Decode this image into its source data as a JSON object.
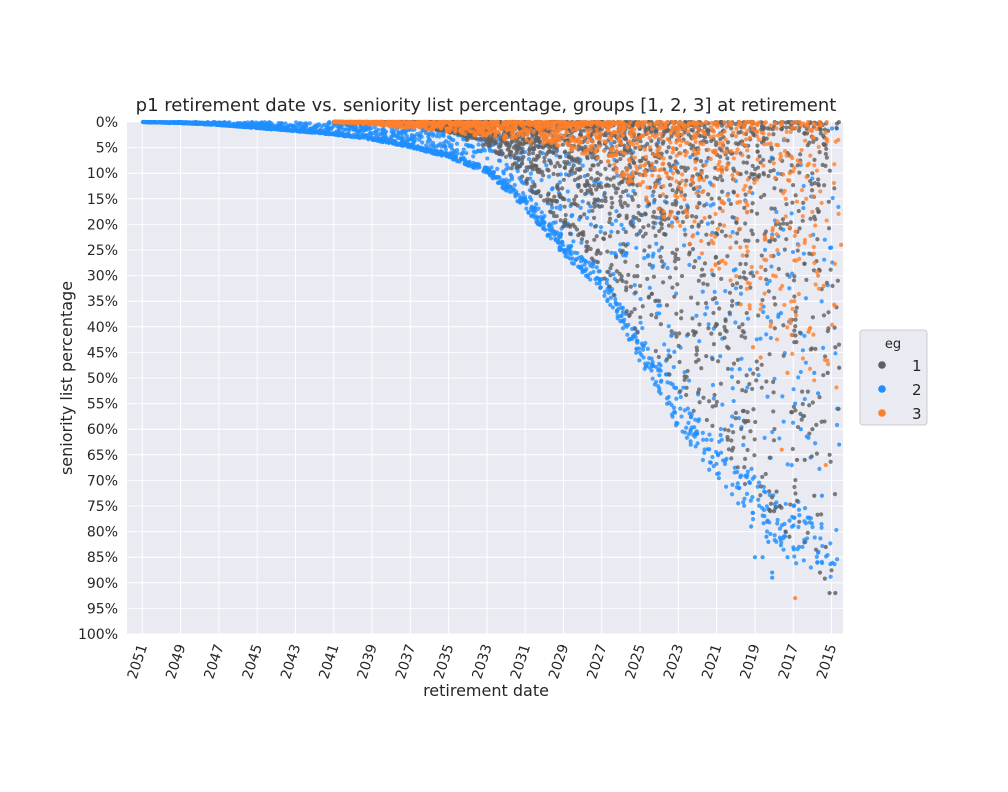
{
  "chart_data": {
    "type": "scatter",
    "title": "p1 retirement date vs. seniority list percentage, groups [1, 2, 3] at retirement",
    "xlabel": "retirement date",
    "ylabel": "seniority list percentage",
    "x_axis_reversed": true,
    "x_ticks": [
      "2051",
      "2049",
      "2047",
      "2045",
      "2043",
      "2041",
      "2039",
      "2037",
      "2035",
      "2033",
      "2031",
      "2029",
      "2027",
      "2025",
      "2023",
      "2021",
      "2019",
      "2017",
      "2015"
    ],
    "xlim": [
      2051.8,
      2014.4
    ],
    "y_axis_reversed": true,
    "ylim": [
      0,
      100
    ],
    "y_ticks": [
      "0%",
      "5%",
      "10%",
      "15%",
      "20%",
      "25%",
      "30%",
      "35%",
      "40%",
      "45%",
      "50%",
      "55%",
      "60%",
      "65%",
      "70%",
      "75%",
      "80%",
      "85%",
      "90%",
      "95%",
      "100%"
    ],
    "grid": true,
    "legend": {
      "title": "eg",
      "placement": "right"
    },
    "series": [
      {
        "name": "1",
        "color": "#5f5f5f",
        "envelope": [
          [
            2041,
            0
          ],
          [
            2037,
            0.5
          ],
          [
            2035,
            2
          ],
          [
            2033,
            5
          ],
          [
            2031,
            12
          ],
          [
            2029,
            21
          ],
          [
            2027,
            30
          ],
          [
            2025,
            42
          ],
          [
            2023,
            53
          ],
          [
            2021,
            62
          ],
          [
            2019,
            75
          ],
          [
            2017,
            82
          ],
          [
            2015,
            93
          ]
        ],
        "points": [
          [
            2014.8,
            92
          ],
          [
            2015.1,
            92
          ],
          [
            2015.6,
            88
          ],
          [
            2017.2,
            81
          ],
          [
            2017.4,
            80
          ],
          [
            2015.9,
            73
          ],
          [
            2016.8,
            74
          ],
          [
            2015.3,
            83
          ],
          [
            2015.1,
            65
          ],
          [
            2016,
            60
          ],
          [
            2016.4,
            66
          ],
          [
            2018.2,
            76
          ],
          [
            2018,
            76
          ],
          [
            2017.7,
            75
          ],
          [
            2016.8,
            66
          ],
          [
            2015.2,
            49
          ],
          [
            2014.6,
            48
          ],
          [
            2014.8,
            44
          ]
        ]
      },
      {
        "name": "2",
        "color": "#1f8fff",
        "envelope": [
          [
            2051,
            0
          ],
          [
            2049,
            0.2
          ],
          [
            2047,
            0.6
          ],
          [
            2045,
            1.2
          ],
          [
            2043,
            1.8
          ],
          [
            2041,
            2.5
          ],
          [
            2039,
            3.5
          ],
          [
            2037,
            5
          ],
          [
            2035,
            7
          ],
          [
            2033,
            10
          ],
          [
            2031,
            17
          ],
          [
            2029,
            26
          ],
          [
            2027,
            33
          ],
          [
            2025,
            47
          ],
          [
            2023,
            60
          ],
          [
            2021,
            70
          ],
          [
            2019,
            78
          ],
          [
            2017,
            86
          ],
          [
            2015,
            90
          ]
        ],
        "points": [
          [
            2017.3,
            85
          ],
          [
            2018.1,
            89
          ],
          [
            2018.1,
            88
          ],
          [
            2018.6,
            85
          ],
          [
            2019,
            85
          ],
          [
            2018.3,
            82
          ],
          [
            2018.4,
            81
          ],
          [
            2019.2,
            79
          ],
          [
            2015.5,
            73
          ],
          [
            2016.6,
            60
          ],
          [
            2016.9,
            55
          ],
          [
            2015.7,
            53
          ],
          [
            2014.6,
            63
          ],
          [
            2014.7,
            56
          ],
          [
            2015.9,
            49
          ]
        ]
      },
      {
        "name": "3",
        "color": "#ff7f2a",
        "envelope": [
          [
            2041,
            0
          ],
          [
            2039,
            0.5
          ],
          [
            2037,
            1.2
          ],
          [
            2035,
            2
          ],
          [
            2033,
            3
          ],
          [
            2031,
            4
          ],
          [
            2029,
            5
          ],
          [
            2027,
            8
          ],
          [
            2025,
            14
          ],
          [
            2023,
            22
          ],
          [
            2021,
            30
          ],
          [
            2019,
            41
          ],
          [
            2017,
            49
          ],
          [
            2015,
            55
          ]
        ],
        "points": [
          [
            2016.9,
            93
          ],
          [
            2015.3,
            67
          ],
          [
            2017.6,
            64
          ],
          [
            2017.3,
            49
          ],
          [
            2018.7,
            46
          ],
          [
            2019.1,
            44
          ],
          [
            2016.2,
            41
          ],
          [
            2015.7,
            30
          ],
          [
            2014.5,
            24
          ],
          [
            2015.4,
            32
          ]
        ]
      }
    ]
  }
}
